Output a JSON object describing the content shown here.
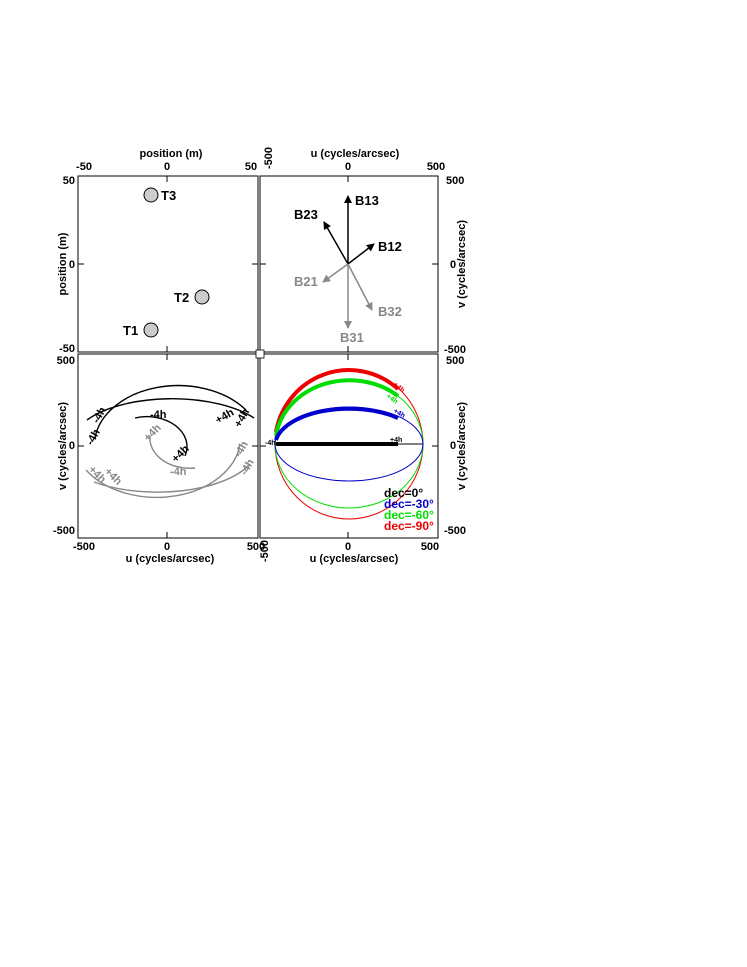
{
  "panels": {
    "positions": {
      "xlabel": "position (m)",
      "ylabel": "position (m)",
      "x_ticks": [
        "-50",
        "0",
        "50"
      ],
      "y_ticks": [
        "50",
        "0",
        "-50"
      ],
      "telescopes": [
        {
          "label": "T3",
          "x": -10,
          "y": 40
        },
        {
          "label": "T2",
          "x": 20,
          "y": -20
        },
        {
          "label": "T1",
          "x": -10,
          "y": -40
        }
      ]
    },
    "baselines": {
      "xlabel": "u (cycles/arcsec)",
      "ylabel": "v (cycles/arcsec)",
      "x_ticks": [
        "-500",
        "0",
        "500"
      ],
      "y_ticks": [
        "500",
        "0",
        "-500"
      ],
      "arrows": [
        {
          "label": "B13",
          "color": "#000000"
        },
        {
          "label": "B23",
          "color": "#000000"
        },
        {
          "label": "B12",
          "color": "#000000"
        },
        {
          "label": "B21",
          "color": "#888888"
        },
        {
          "label": "B32",
          "color": "#888888"
        },
        {
          "label": "B31",
          "color": "#888888"
        }
      ]
    },
    "uv_tracks": {
      "xlabel": "u (cycles/arcsec)",
      "ylabel": "v (cycles/arcsec)",
      "x_ticks": [
        "-500",
        "0",
        "500"
      ],
      "y_ticks": [
        "500",
        "0",
        "-500"
      ],
      "hour_labels": [
        "-4h",
        "+4h"
      ]
    },
    "declinations": {
      "xlabel": "u (cycles/arcsec)",
      "ylabel": "v (cycles/arcsec)",
      "x_ticks": [
        "-500",
        "0",
        "500"
      ],
      "y_ticks": [
        "500",
        "0",
        "-500"
      ],
      "legend": [
        {
          "label": "dec=0°",
          "color": "#000000"
        },
        {
          "label": "dec=-30°",
          "color": "#0000cc"
        },
        {
          "label": "dec=-60°",
          "color": "#00dd00"
        },
        {
          "label": "dec=-90°",
          "color": "#ee0000"
        }
      ],
      "hour_labels": [
        "-4h",
        "+4h"
      ]
    }
  },
  "colors": {
    "grey": "#888888",
    "circle_fill": "#cccccc"
  }
}
